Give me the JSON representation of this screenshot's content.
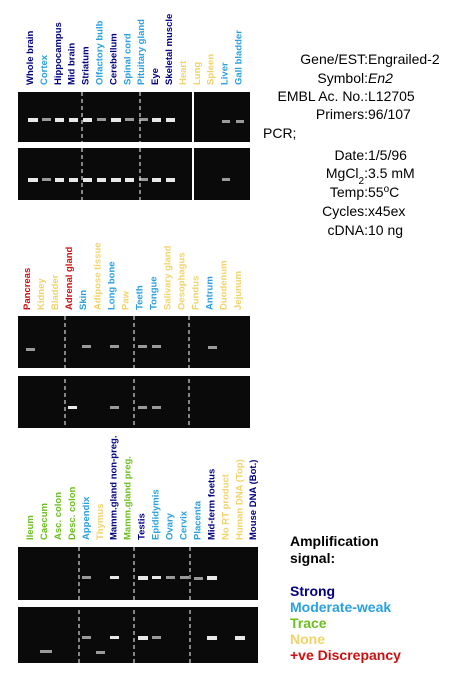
{
  "panels": [
    {
      "labels": [
        {
          "text": "Whole brain",
          "color": "#000080"
        },
        {
          "text": "Cortex",
          "color": "#2aa0e0"
        },
        {
          "text": "Hippocampus",
          "color": "#000080"
        },
        {
          "text": "Mid brain",
          "color": "#000080"
        },
        {
          "text": "Striatum",
          "color": "#000080"
        },
        {
          "text": "Olfactory bulb",
          "color": "#2aa0e0"
        },
        {
          "text": "Cerebellum",
          "color": "#000080"
        },
        {
          "text": "Spinal cord",
          "color": "#2aa0e0"
        },
        {
          "text": "Pituitary gland",
          "color": "#2aa0e0"
        },
        {
          "text": "Eye",
          "color": "#000080"
        },
        {
          "text": "Skeletal muscle",
          "color": "#000080"
        },
        {
          "text": "Heart",
          "color": "#f2d36a"
        },
        {
          "text": "Lung",
          "color": "#f2d36a"
        },
        {
          "text": "Spleen",
          "color": "#f2d36a"
        },
        {
          "text": "Liver",
          "color": "#2aa0e0"
        },
        {
          "text": "Gall bladder",
          "color": "#2aa0e0"
        }
      ]
    },
    {
      "labels": [
        {
          "text": "Pancreas",
          "color": "#cc1010"
        },
        {
          "text": "Kidney",
          "color": "#f2d36a"
        },
        {
          "text": "Bladder",
          "color": "#f2d36a"
        },
        {
          "text": "Adrenal gland",
          "color": "#cc1010"
        },
        {
          "text": "Skin",
          "color": "#2aa0e0"
        },
        {
          "text": "Adipose tissue",
          "color": "#f2d36a"
        },
        {
          "text": "Long bone",
          "color": "#2aa0e0"
        },
        {
          "text": "Paw",
          "color": "#f2d36a"
        },
        {
          "text": "Teeth",
          "color": "#2aa0e0"
        },
        {
          "text": "Tongue",
          "color": "#2aa0e0"
        },
        {
          "text": "Salivary gland",
          "color": "#f2d36a"
        },
        {
          "text": "Oesophagus",
          "color": "#f2d36a"
        },
        {
          "text": "Fundus",
          "color": "#f2d36a"
        },
        {
          "text": "Antrum",
          "color": "#2aa0e0"
        },
        {
          "text": "Duodenum",
          "color": "#f2d36a"
        },
        {
          "text": "Jejunum",
          "color": "#f2d36a"
        }
      ]
    },
    {
      "labels": [
        {
          "text": "Ileum",
          "color": "#6cbf1e"
        },
        {
          "text": "Caecum",
          "color": "#6cbf1e"
        },
        {
          "text": "Asc. colon",
          "color": "#6cbf1e"
        },
        {
          "text": "Desc. colon",
          "color": "#6cbf1e"
        },
        {
          "text": "Appendix",
          "color": "#2aa0e0"
        },
        {
          "text": "Thymus",
          "color": "#f2d36a"
        },
        {
          "text": "Mamm.gland non-preg.",
          "color": "#000080"
        },
        {
          "text": "Mamm.gland preg.",
          "color": "#6cbf1e"
        },
        {
          "text": "Testis",
          "color": "#000080"
        },
        {
          "text": "Epididymis",
          "color": "#2aa0e0"
        },
        {
          "text": "Ovary",
          "color": "#2aa0e0"
        },
        {
          "text": "Cervix",
          "color": "#2aa0e0"
        },
        {
          "text": "Placenta",
          "color": "#2aa0e0"
        },
        {
          "text": "Mid-term foetus",
          "color": "#000080"
        },
        {
          "text": "No RT product",
          "color": "#f2d36a"
        },
        {
          "text": "Human DNA (Top)",
          "color": "#f2d36a"
        },
        {
          "text": "Mouse DNA (Bot.)",
          "color": "#000080"
        }
      ]
    }
  ],
  "info": [
    {
      "label": "Gene/EST:",
      "value": "Engrailed-2"
    },
    {
      "label": "Symbol:",
      "value": "En2",
      "italic": true
    },
    {
      "label": "EMBL Ac. No.:",
      "value": "L12705"
    },
    {
      "label": "Primers:",
      "value": "96/107"
    },
    {
      "label": "PCR;"
    },
    {
      "label": "Date:",
      "value": "1/5/96"
    },
    {
      "label": "MgCl",
      "label_sub": "2",
      "label_end": ":",
      "value": "3.5 mM"
    },
    {
      "label": "Temp:",
      "value": "55",
      "value_sup": "o",
      "value_end": "C"
    },
    {
      "label": "Cycles:",
      "value": "x45ex"
    },
    {
      "label": "cDNA:",
      "value": "10 ng"
    }
  ],
  "legend": {
    "title_lines": [
      "Amplification",
      "signal:"
    ],
    "items": [
      {
        "name": "Strong",
        "color": "#000080"
      },
      {
        "name": "Moderate-weak",
        "color": "#2aa0e0"
      },
      {
        "name": "Trace",
        "color": "#6cbf1e"
      },
      {
        "name": "None",
        "color": "#f2d36a"
      },
      {
        "name": "+ve Discrepancy",
        "color": "#cc1010"
      }
    ]
  }
}
